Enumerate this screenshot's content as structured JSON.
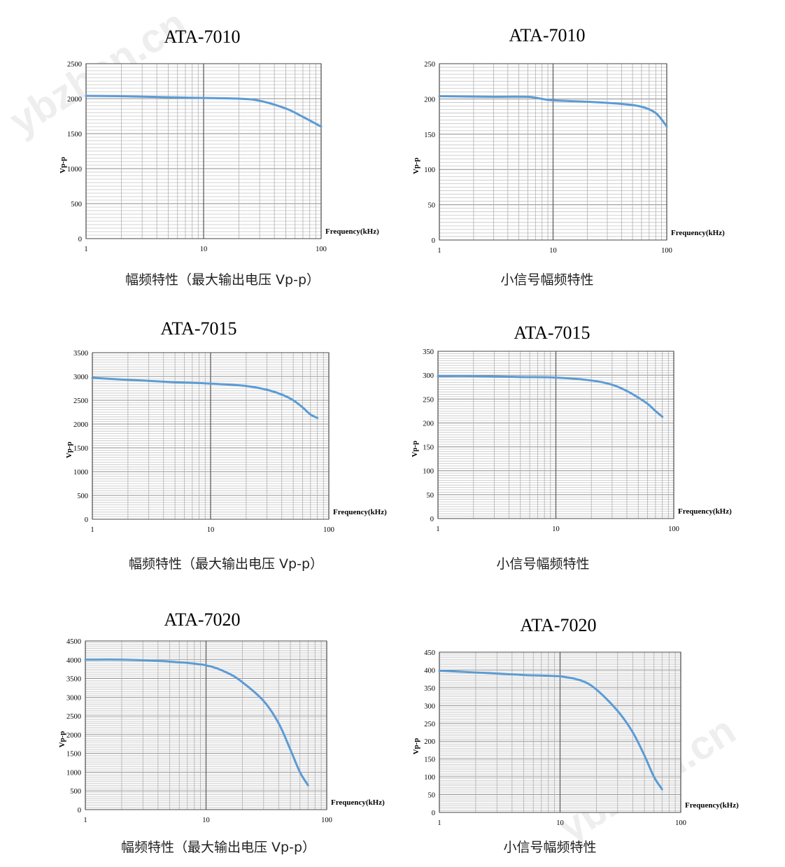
{
  "watermark": "ybzhan.cn",
  "chart_data": [
    {
      "type": "line",
      "title": "ATA-7010",
      "caption": "幅频特性（最大输出电压 Vp-p）",
      "ylabel": "Vp-p",
      "xlabel": "Frequency(kHz)",
      "xscale": "log",
      "xlim": [
        1,
        100
      ],
      "ylim": [
        0,
        2500
      ],
      "xticks": [
        1,
        10,
        100
      ],
      "yticks": [
        0,
        500,
        1000,
        1500,
        2000,
        2500
      ],
      "grid": true,
      "line_color": "#5b9bd5",
      "x": [
        1,
        2,
        5,
        10,
        20,
        30,
        50,
        70,
        100
      ],
      "y": [
        2040,
        2035,
        2020,
        2010,
        2000,
        1970,
        1860,
        1740,
        1600
      ]
    },
    {
      "type": "line",
      "title": "ATA-7010",
      "caption": "小信号幅频特性",
      "ylabel": "Vp-p",
      "xlabel": "Frequency(kHz)",
      "xscale": "log",
      "xlim": [
        1,
        100
      ],
      "ylim": [
        0,
        250
      ],
      "xticks": [
        1,
        10,
        100
      ],
      "yticks": [
        0,
        50,
        100,
        150,
        200,
        250
      ],
      "grid": true,
      "line_color": "#5b9bd5",
      "x": [
        1,
        3,
        6,
        8,
        10,
        20,
        40,
        60,
        80,
        100
      ],
      "y": [
        204,
        203,
        203,
        200,
        198,
        196,
        193,
        189,
        180,
        161
      ]
    },
    {
      "type": "line",
      "title": "ATA-7015",
      "caption": "幅频特性（最大输出电压 Vp-p）",
      "ylabel": "Vp-p",
      "xlabel": "Frequency(kHz)",
      "xscale": "log",
      "xlim": [
        1,
        100
      ],
      "ylim": [
        0,
        3500
      ],
      "xticks": [
        1,
        10,
        100
      ],
      "yticks": [
        0,
        500,
        1000,
        1500,
        2000,
        2500,
        3000,
        3500
      ],
      "grid": true,
      "line_color": "#5b9bd5",
      "x": [
        1,
        2,
        5,
        10,
        20,
        30,
        40,
        50,
        60,
        70,
        80
      ],
      "y": [
        2970,
        2930,
        2880,
        2850,
        2800,
        2720,
        2620,
        2500,
        2350,
        2200,
        2130
      ]
    },
    {
      "type": "line",
      "title": "ATA-7015",
      "caption": "小信号幅频特性",
      "ylabel": "Vp-p",
      "xlabel": "Frequency(kHz)",
      "xscale": "log",
      "xlim": [
        1,
        100
      ],
      "ylim": [
        0,
        350
      ],
      "xticks": [
        1,
        10,
        100
      ],
      "yticks": [
        0,
        50,
        100,
        150,
        200,
        250,
        300,
        350
      ],
      "grid": true,
      "line_color": "#5b9bd5",
      "x": [
        1,
        2,
        5,
        10,
        20,
        30,
        40,
        50,
        60,
        70,
        80
      ],
      "y": [
        298,
        298,
        296,
        295,
        289,
        280,
        267,
        253,
        240,
        225,
        213
      ]
    },
    {
      "type": "line",
      "title": "ATA-7020",
      "caption": "幅频特性（最大输出电压 Vp-p）",
      "ylabel": "Vp-p",
      "xlabel": "Frequency(kHz)",
      "xscale": "log",
      "xlim": [
        1,
        100
      ],
      "ylim": [
        0,
        4500
      ],
      "xticks": [
        1,
        10,
        100
      ],
      "yticks": [
        0,
        500,
        1000,
        1500,
        2000,
        2500,
        3000,
        3500,
        4000,
        4500
      ],
      "grid": true,
      "line_color": "#5b9bd5",
      "x": [
        1,
        2,
        5,
        10,
        15,
        20,
        30,
        40,
        50,
        60,
        70
      ],
      "y": [
        4000,
        4000,
        3950,
        3850,
        3650,
        3400,
        2900,
        2300,
        1600,
        1000,
        650
      ]
    },
    {
      "type": "line",
      "title": "ATA-7020",
      "caption": "小信号幅频特性",
      "ylabel": "Vp-p",
      "xlabel": "Frequency(kHz)",
      "xscale": "log",
      "xlim": [
        1,
        100
      ],
      "ylim": [
        0,
        450
      ],
      "xticks": [
        1,
        10,
        100
      ],
      "yticks": [
        0,
        50,
        100,
        150,
        200,
        250,
        300,
        350,
        400,
        450
      ],
      "grid": true,
      "line_color": "#5b9bd5",
      "x": [
        1,
        2,
        5,
        10,
        15,
        20,
        30,
        40,
        50,
        60,
        70
      ],
      "y": [
        398,
        393,
        386,
        382,
        370,
        345,
        285,
        225,
        160,
        100,
        65
      ]
    }
  ]
}
